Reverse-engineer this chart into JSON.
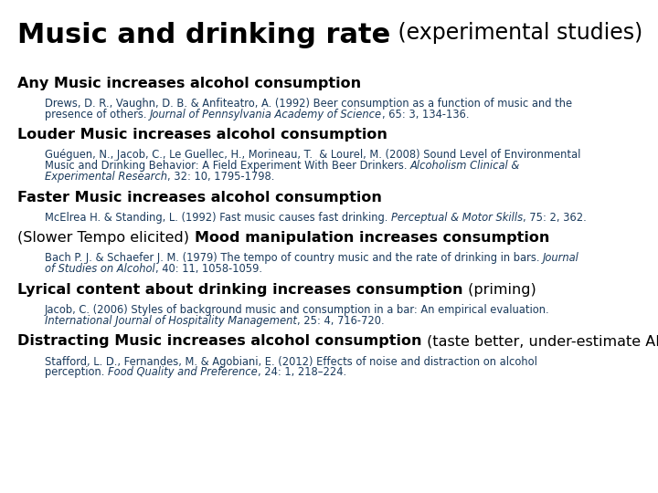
{
  "title_bold": "Music and drinking rate",
  "title_normal": " (experimental studies)",
  "background_color": "#ffffff",
  "heading_color": "#000000",
  "ref_color": "#1a3a5c",
  "sections": [
    {
      "heading_bold": "Any Music increases alcohol consumption",
      "heading_normal": "",
      "heading_prefix": "",
      "ref": "Drews, D. R., Vaughn, D. B. & Anfiteatro, A. (1992) Beer consumption as a function of music and the\npresence of others. [i]Journal of Pennsylvania Academy of Science[/i], 65: 3, 134-136."
    },
    {
      "heading_bold": "Louder Music increases alcohol consumption",
      "heading_normal": "",
      "heading_prefix": "",
      "ref": "Guéguen, N., Jacob, C., Le Guellec, H., Morineau, T.  & Lourel, M. (2008) Sound Level of Environmental\nMusic and Drinking Behavior: A Field Experiment With Beer Drinkers. [i]Alcoholism Clinical &\nExperimental Research[/i], 32: 10, 1795-1798."
    },
    {
      "heading_bold": "Faster Music increases alcohol consumption",
      "heading_normal": "",
      "heading_prefix": "",
      "ref": "McElrea H. & Standing, L. (1992) Fast music causes fast drinking. [i]Perceptual & Motor Skills[/i], 75: 2, 362."
    },
    {
      "heading_bold": "Mood manipulation increases consumption",
      "heading_normal": "",
      "heading_prefix": "(Slower Tempo elicited) ",
      "ref": "Bach P. J. & Schaefer J. M. (1979) The tempo of country music and the rate of drinking in bars. [i]Journal\nof Studies on Alcohol[/i], 40: 11, 1058-1059."
    },
    {
      "heading_bold": "Lyrical content about drinking increases consumption",
      "heading_normal": " (priming)",
      "heading_prefix": "",
      "ref": "Jacob, C. (2006) Styles of background music and consumption in a bar: An empirical evaluation.\n[i]International Journal of Hospitality Management[/i], 25: 4, 716-720."
    },
    {
      "heading_bold": "Distracting Music increases alcohol consumption",
      "heading_normal": " (taste better, under-estimate ABV)",
      "heading_prefix": "",
      "ref": "Stafford, L. D., Fernandes, M. & Agobiani, E. (2012) Effects of noise and distraction on alcohol\nperception. [i]Food Quality and Preference[/i], 24: 1, 218–224."
    }
  ]
}
